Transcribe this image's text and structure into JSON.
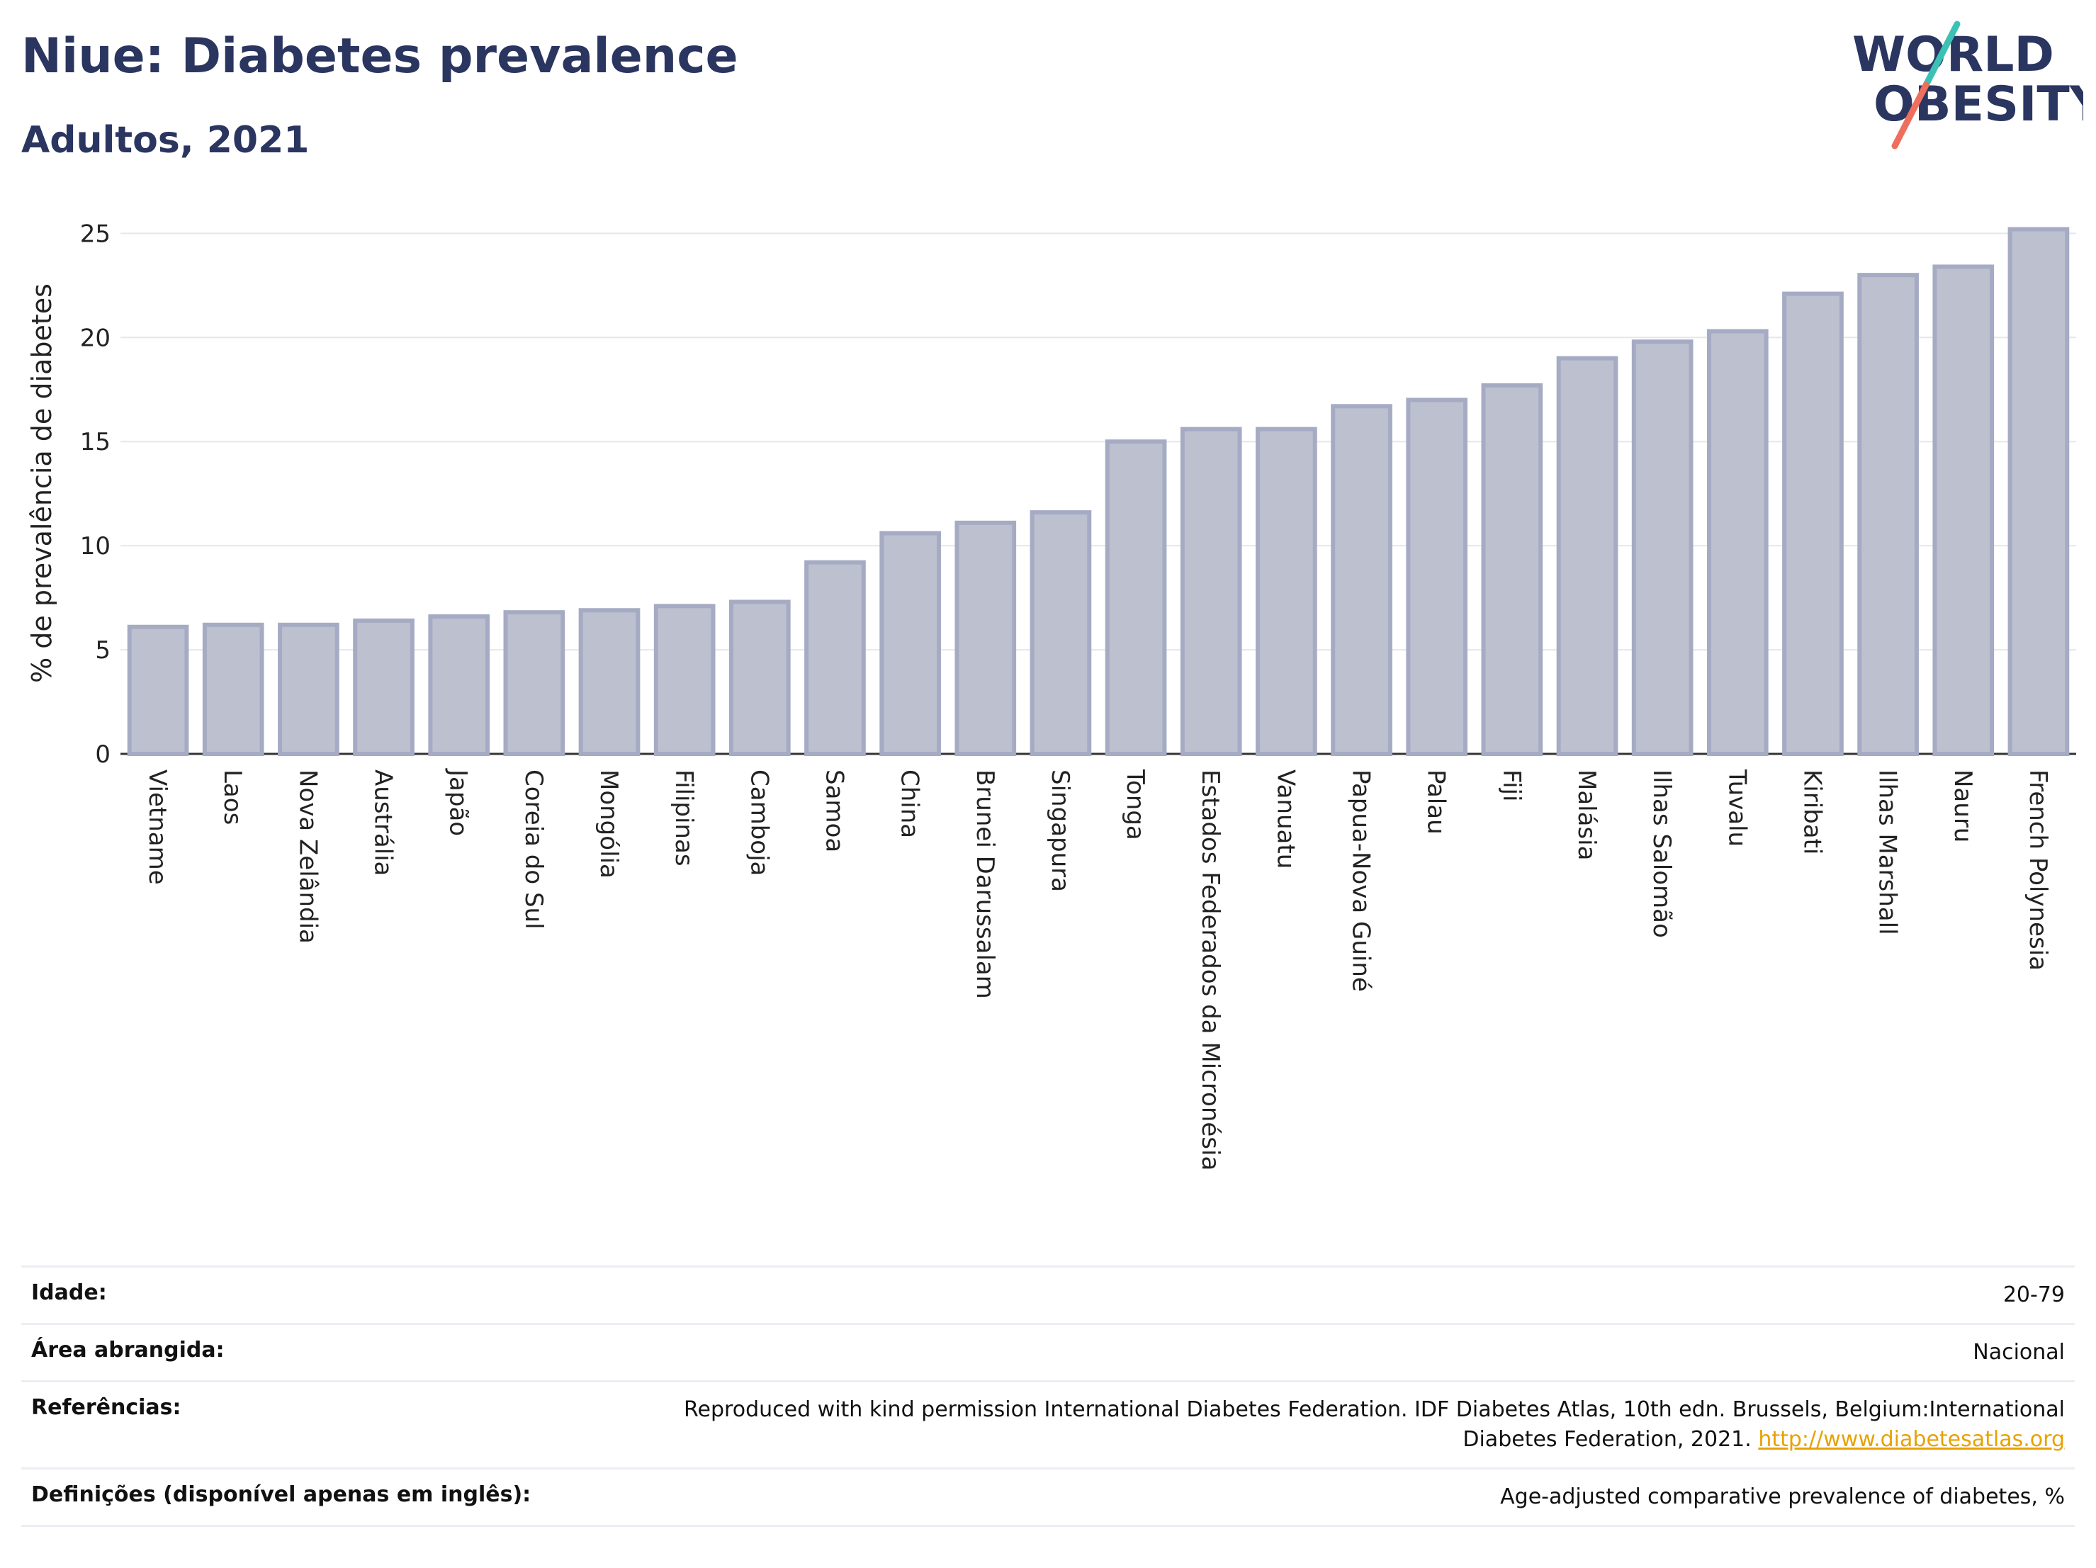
{
  "header": {
    "title": "Niue: Diabetes prevalence",
    "subtitle": "Adultos, 2021"
  },
  "logo": {
    "line1": "WORLD",
    "line2": "OBESITY",
    "accent_teal": "#3cc1b5",
    "accent_coral": "#ef6f5e"
  },
  "chart_data": {
    "type": "bar",
    "ylabel": "% de prevalência de diabetes",
    "ylim": [
      0,
      26
    ],
    "yticks": [
      0,
      5,
      10,
      15,
      20,
      25
    ],
    "grid": true,
    "categories": [
      "Vietname",
      "Laos",
      "Nova Zelândia",
      "Austrália",
      "Japão",
      "Coreia do Sul",
      "Mongólia",
      "Filipinas",
      "Camboja",
      "Samoa",
      "China",
      "Brunei Darussalam",
      "Singapura",
      "Tonga",
      "Estados Federados da Micronésia",
      "Vanuatu",
      "Papua-Nova Guiné",
      "Palau",
      "Fiji",
      "Malásia",
      "Ilhas Salomão",
      "Tuvalu",
      "Kiribati",
      "Ilhas Marshall",
      "Nauru",
      "French Polynesia"
    ],
    "values": [
      6.1,
      6.2,
      6.2,
      6.4,
      6.6,
      6.8,
      6.9,
      7.1,
      7.3,
      9.2,
      10.6,
      11.1,
      11.6,
      15.0,
      15.6,
      15.6,
      16.7,
      17.0,
      17.7,
      19.0,
      19.8,
      20.3,
      22.1,
      23.0,
      23.4,
      25.2
    ],
    "bar_color": "#bcc0cf"
  },
  "footer": {
    "rows": [
      {
        "label": "Idade:",
        "value": "20-79"
      },
      {
        "label": "Área abrangida:",
        "value": "Nacional"
      },
      {
        "label": "Referências:",
        "value": "Reproduced with kind permission International Diabetes Federation.  IDF Diabetes Atlas, 10th edn. Brussels, Belgium:International Diabetes Federation, 2021.",
        "link": "http://www.diabetesatlas.org"
      },
      {
        "label": "Definições (disponível apenas em inglês):",
        "value": "Age-adjusted comparative prevalence of diabetes, %"
      }
    ]
  }
}
